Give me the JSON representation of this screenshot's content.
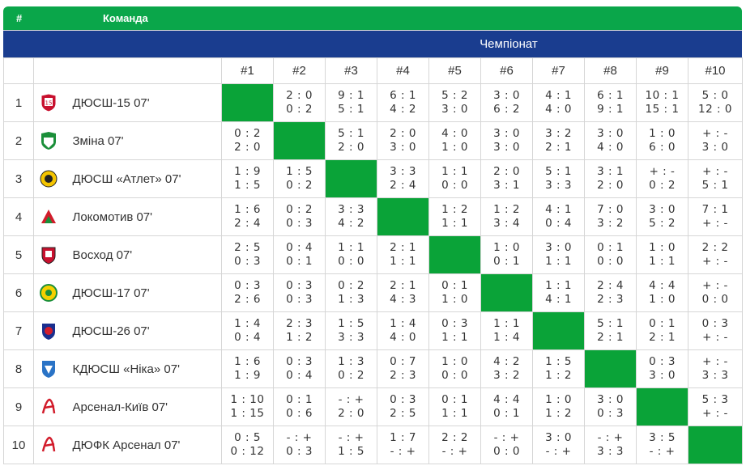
{
  "header": {
    "hash": "#",
    "team_label": "Команда"
  },
  "championship_label": "Чемпіонат",
  "columns": [
    "#1",
    "#2",
    "#3",
    "#4",
    "#5",
    "#6",
    "#7",
    "#8",
    "#9",
    "#10"
  ],
  "colors": {
    "header_green": "#0aa64a",
    "champ_blue": "#1a3d8f",
    "diagonal_green": "#0aa338"
  },
  "rows": [
    {
      "num": "1",
      "team": "ДЮСШ-15 07'",
      "logo": "dyussh15-logo",
      "scores": [
        null,
        [
          "2 : 0",
          "0 : 2"
        ],
        [
          "9 : 1",
          "5 : 1"
        ],
        [
          "6 : 1",
          "4 : 2"
        ],
        [
          "5 : 2",
          "3 : 0"
        ],
        [
          "3 : 0",
          "6 : 2"
        ],
        [
          "4 : 1",
          "4 : 0"
        ],
        [
          "6 : 1",
          "9 : 1"
        ],
        [
          "10 : 1",
          "15 : 1"
        ],
        [
          "5 : 0",
          "12 : 0"
        ]
      ]
    },
    {
      "num": "2",
      "team": "Зміна 07'",
      "logo": "zmina-logo",
      "scores": [
        [
          "0 : 2",
          "2 : 0"
        ],
        null,
        [
          "5 : 1",
          "2 : 0"
        ],
        [
          "2 : 0",
          "3 : 0"
        ],
        [
          "4 : 0",
          "1 : 0"
        ],
        [
          "3 : 0",
          "3 : 0"
        ],
        [
          "3 : 2",
          "2 : 1"
        ],
        [
          "3 : 0",
          "4 : 0"
        ],
        [
          "1 : 0",
          "6 : 0"
        ],
        [
          "+ : -",
          "3 : 0"
        ]
      ]
    },
    {
      "num": "3",
      "team": "ДЮСШ «Атлет» 07'",
      "logo": "atlet-logo",
      "scores": [
        [
          "1 : 9",
          "1 : 5"
        ],
        [
          "1 : 5",
          "0 : 2"
        ],
        null,
        [
          "3 : 3",
          "2 : 4"
        ],
        [
          "1 : 1",
          "0 : 0"
        ],
        [
          "2 : 0",
          "3 : 1"
        ],
        [
          "5 : 1",
          "3 : 3"
        ],
        [
          "3 : 1",
          "2 : 0"
        ],
        [
          "+ : -",
          "0 : 2"
        ],
        [
          "+ : -",
          "5 : 1"
        ]
      ]
    },
    {
      "num": "4",
      "team": "Локомотив 07'",
      "logo": "lokomotiv-logo",
      "scores": [
        [
          "1 : 6",
          "2 : 4"
        ],
        [
          "0 : 2",
          "0 : 3"
        ],
        [
          "3 : 3",
          "4 : 2"
        ],
        null,
        [
          "1 : 2",
          "1 : 1"
        ],
        [
          "1 : 2",
          "3 : 4"
        ],
        [
          "4 : 1",
          "0 : 4"
        ],
        [
          "7 : 0",
          "3 : 2"
        ],
        [
          "3 : 0",
          "5 : 2"
        ],
        [
          "7 : 1",
          "+ : -"
        ]
      ]
    },
    {
      "num": "5",
      "team": "Восход 07'",
      "logo": "voskhod-logo",
      "scores": [
        [
          "2 : 5",
          "0 : 3"
        ],
        [
          "0 : 4",
          "0 : 1"
        ],
        [
          "1 : 1",
          "0 : 0"
        ],
        [
          "2 : 1",
          "1 : 1"
        ],
        null,
        [
          "1 : 0",
          "0 : 1"
        ],
        [
          "3 : 0",
          "1 : 1"
        ],
        [
          "0 : 1",
          "0 : 0"
        ],
        [
          "1 : 0",
          "1 : 1"
        ],
        [
          "2 : 2",
          "+ : -"
        ]
      ]
    },
    {
      "num": "6",
      "team": "ДЮСШ-17 07'",
      "logo": "dyussh17-logo",
      "scores": [
        [
          "0 : 3",
          "2 : 6"
        ],
        [
          "0 : 3",
          "0 : 3"
        ],
        [
          "0 : 2",
          "1 : 3"
        ],
        [
          "2 : 1",
          "4 : 3"
        ],
        [
          "0 : 1",
          "1 : 0"
        ],
        null,
        [
          "1 : 1",
          "4 : 1"
        ],
        [
          "2 : 4",
          "2 : 3"
        ],
        [
          "4 : 4",
          "1 : 0"
        ],
        [
          "+ : -",
          "0 : 0"
        ]
      ]
    },
    {
      "num": "7",
      "team": "ДЮСШ-26 07'",
      "logo": "dyussh26-logo",
      "scores": [
        [
          "1 : 4",
          "0 : 4"
        ],
        [
          "2 : 3",
          "1 : 2"
        ],
        [
          "1 : 5",
          "3 : 3"
        ],
        [
          "1 : 4",
          "4 : 0"
        ],
        [
          "0 : 3",
          "1 : 1"
        ],
        [
          "1 : 1",
          "1 : 4"
        ],
        null,
        [
          "5 : 1",
          "2 : 1"
        ],
        [
          "0 : 1",
          "2 : 1"
        ],
        [
          "0 : 3",
          "+ : -"
        ]
      ]
    },
    {
      "num": "8",
      "team": "КДЮСШ «Ніка» 07'",
      "logo": "nika-logo",
      "scores": [
        [
          "1 : 6",
          "1 : 9"
        ],
        [
          "0 : 3",
          "0 : 4"
        ],
        [
          "1 : 3",
          "0 : 2"
        ],
        [
          "0 : 7",
          "2 : 3"
        ],
        [
          "1 : 0",
          "0 : 0"
        ],
        [
          "4 : 2",
          "3 : 2"
        ],
        [
          "1 : 5",
          "1 : 2"
        ],
        null,
        [
          "0 : 3",
          "3 : 0"
        ],
        [
          "+ : -",
          "3 : 3"
        ]
      ]
    },
    {
      "num": "9",
      "team": "Арсенал-Київ 07'",
      "logo": "arsenal-kyiv-logo",
      "scores": [
        [
          "1 : 10",
          "1 : 15"
        ],
        [
          "0 : 1",
          "0 : 6"
        ],
        [
          "- : +",
          "2 : 0"
        ],
        [
          "0 : 3",
          "2 : 5"
        ],
        [
          "0 : 1",
          "1 : 1"
        ],
        [
          "4 : 4",
          "0 : 1"
        ],
        [
          "1 : 0",
          "1 : 2"
        ],
        [
          "3 : 0",
          "0 : 3"
        ],
        null,
        [
          "5 : 3",
          "+ : -"
        ]
      ]
    },
    {
      "num": "10",
      "team": "ДЮФК Арсенал 07'",
      "logo": "dyufk-arsenal-logo",
      "scores": [
        [
          "0 : 5",
          "0 : 12"
        ],
        [
          "- : +",
          "0 : 3"
        ],
        [
          "- : +",
          "1 : 5"
        ],
        [
          "1 : 7",
          "- : +"
        ],
        [
          "2 : 2",
          "- : +"
        ],
        [
          "- : +",
          "0 : 0"
        ],
        [
          "3 : 0",
          "- : +"
        ],
        [
          "- : +",
          "3 : 3"
        ],
        [
          "3 : 5",
          "- : +"
        ],
        null
      ]
    }
  ]
}
